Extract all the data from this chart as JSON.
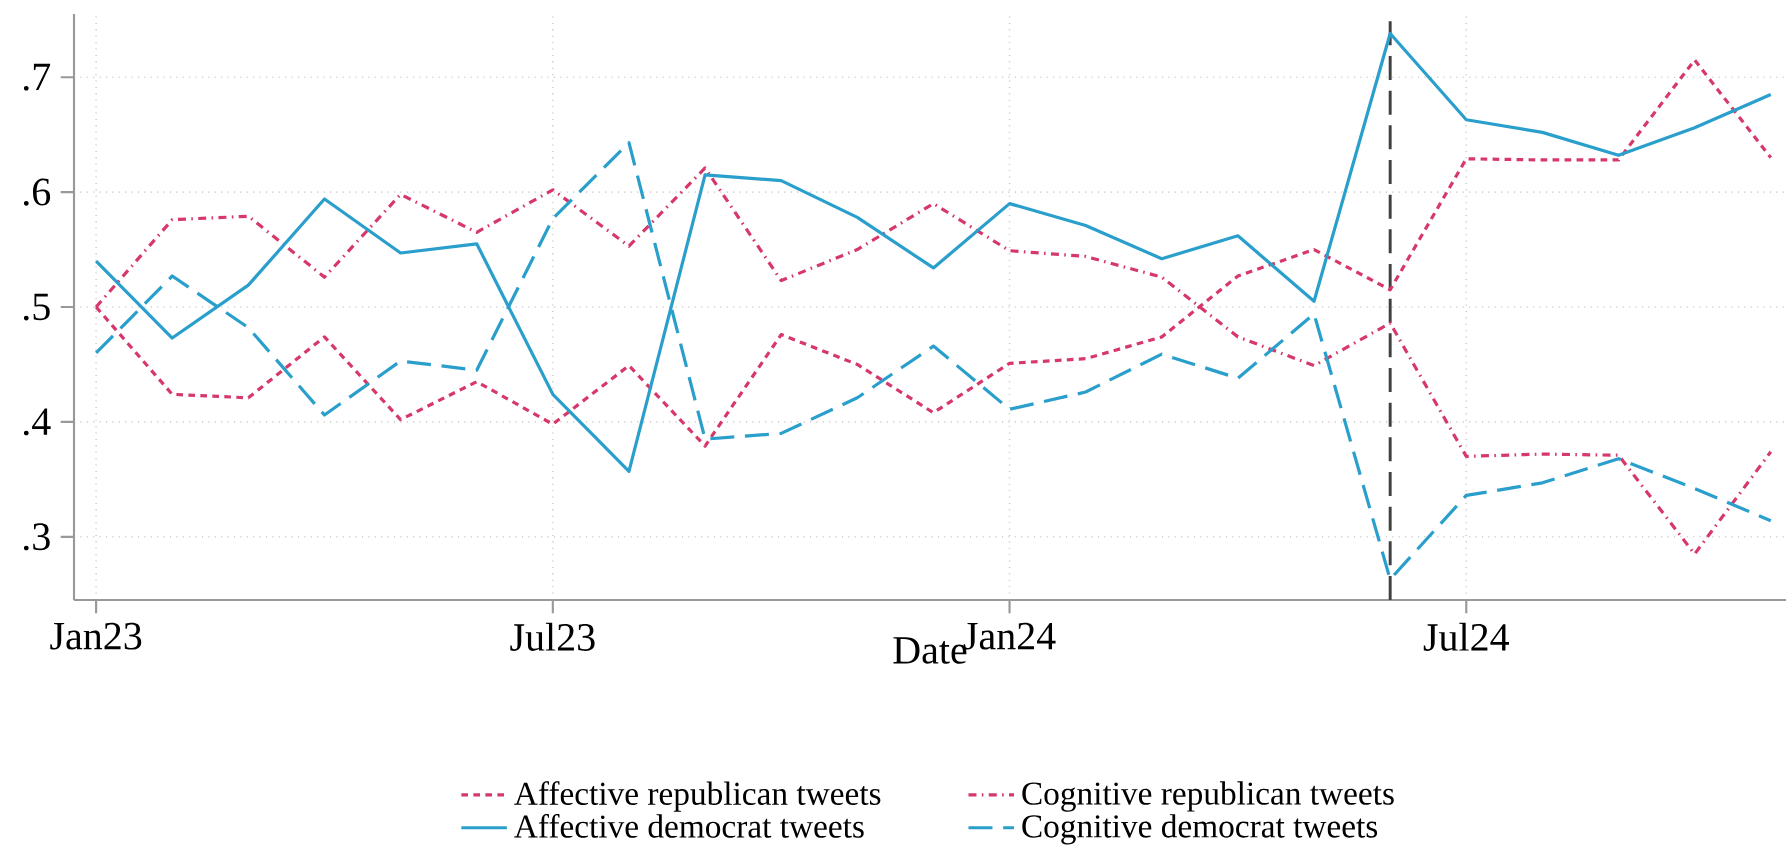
{
  "chart_data": {
    "type": "line",
    "xlabel": "Date",
    "x": [
      "2023-01",
      "2023-02",
      "2023-03",
      "2023-04",
      "2023-05",
      "2023-06",
      "2023-07",
      "2023-08",
      "2023-09",
      "2023-10",
      "2023-11",
      "2023-12",
      "2024-01",
      "2024-02",
      "2024-03",
      "2024-04",
      "2024-05",
      "2024-06",
      "2024-07",
      "2024-08",
      "2024-09",
      "2024-10",
      "2024-11"
    ],
    "series": [
      {
        "name": "Affective republican tweets",
        "color": "#d6386a",
        "line_style": "dotted",
        "values": [
          0.5,
          0.424,
          0.421,
          0.474,
          0.402,
          0.435,
          0.398,
          0.449,
          0.379,
          0.476,
          0.45,
          0.408,
          0.451,
          0.455,
          0.474,
          0.527,
          0.55,
          0.515,
          0.629,
          0.628,
          0.628,
          0.715,
          0.63
        ]
      },
      {
        "name": "Cognitive republican tweets",
        "color": "#d6386a",
        "line_style": "dashdot",
        "values": [
          0.5,
          0.576,
          0.579,
          0.526,
          0.598,
          0.565,
          0.602,
          0.553,
          0.621,
          0.523,
          0.55,
          0.59,
          0.549,
          0.544,
          0.526,
          0.474,
          0.449,
          0.486,
          0.37,
          0.372,
          0.371,
          0.285,
          0.374
        ]
      },
      {
        "name": "Affective democrat tweets",
        "color": "#2a9fcc",
        "line_style": "solid",
        "values": [
          0.54,
          0.473,
          0.519,
          0.594,
          0.547,
          0.555,
          0.424,
          0.357,
          0.615,
          0.61,
          0.578,
          0.534,
          0.59,
          0.571,
          0.542,
          0.562,
          0.505,
          0.738,
          0.663,
          0.652,
          0.632,
          0.656,
          0.685
        ]
      },
      {
        "name": "Cognitive democrat tweets",
        "color": "#2a9fcc",
        "line_style": "dashed",
        "values": [
          0.46,
          0.527,
          0.482,
          0.406,
          0.453,
          0.445,
          0.577,
          0.643,
          0.385,
          0.39,
          0.421,
          0.466,
          0.411,
          0.426,
          0.459,
          0.438,
          0.494,
          0.263,
          0.336,
          0.347,
          0.368,
          0.342,
          0.314
        ]
      }
    ],
    "xlim": [
      "2022-12-23",
      "2024-11-07"
    ],
    "xticks": [
      {
        "value": "2023-01",
        "label": "Jan23"
      },
      {
        "value": "2023-07",
        "label": "Jul23"
      },
      {
        "value": "2024-01",
        "label": "Jan24"
      },
      {
        "value": "2024-07",
        "label": "Jul24"
      }
    ],
    "ylim": [
      0.245,
      0.755
    ],
    "yticks": [
      {
        "value": 0.3,
        "label": ".3"
      },
      {
        "value": 0.4,
        "label": ".4"
      },
      {
        "value": 0.5,
        "label": ".5"
      },
      {
        "value": 0.6,
        "label": ".6"
      },
      {
        "value": 0.7,
        "label": ".7"
      }
    ],
    "ref_lines": [
      {
        "axis": "x",
        "value": "2024-06",
        "color": "#404040",
        "line_style": "dashed"
      }
    ],
    "grid": true,
    "legend": "bottom"
  }
}
